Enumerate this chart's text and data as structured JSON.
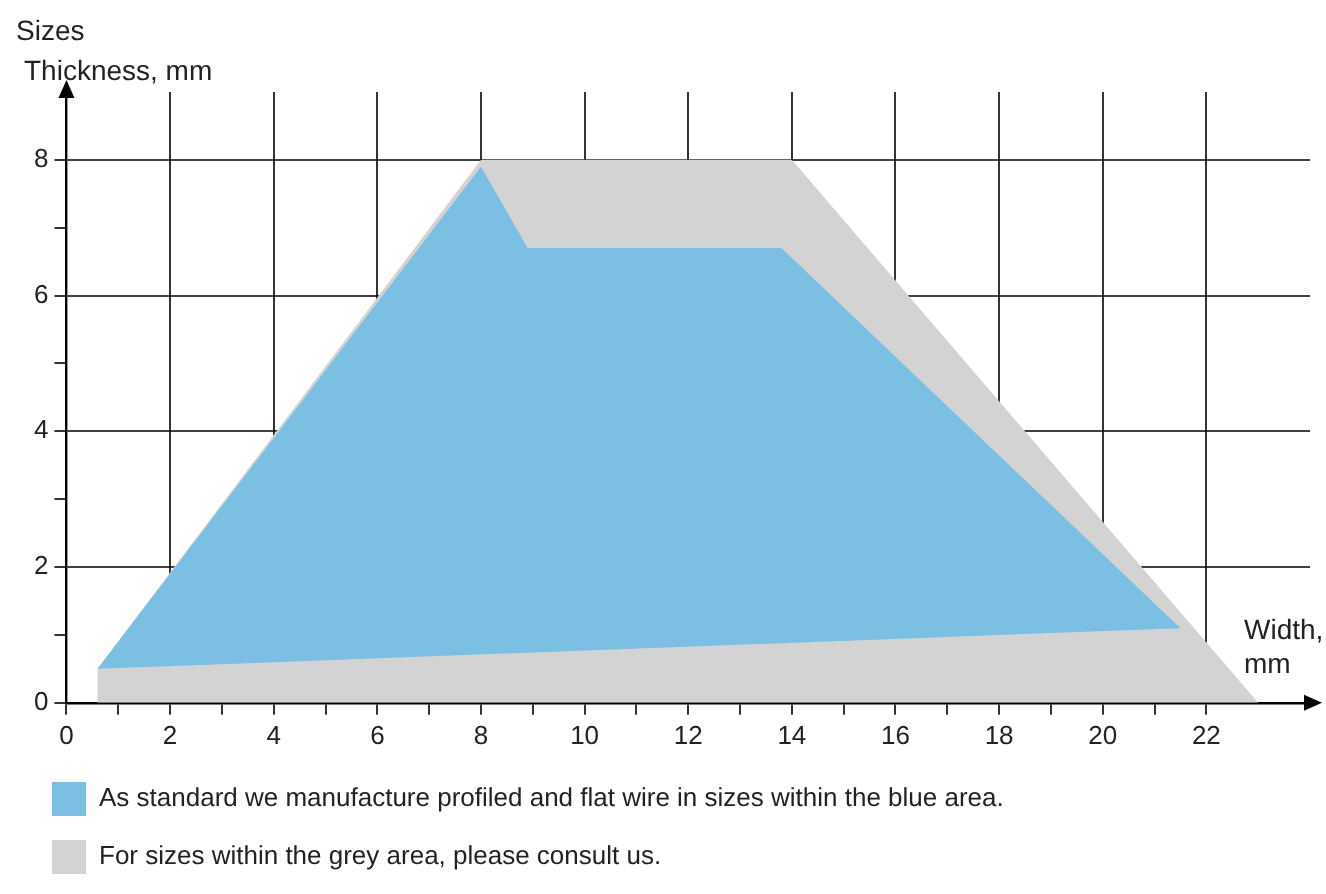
{
  "chart_data": {
    "type": "area",
    "title": "Sizes",
    "ylabel": "Thickness, mm",
    "xlabel": "Width,\nmm",
    "xlim": [
      0,
      24
    ],
    "ylim": [
      0,
      9
    ],
    "xticks": [
      0,
      {
        "value": 1,
        "label": null
      },
      2,
      {
        "value": 3,
        "label": null
      },
      4,
      {
        "value": 5,
        "label": null
      },
      6,
      {
        "value": 7,
        "label": null
      },
      8,
      {
        "value": 9,
        "label": null
      },
      10,
      {
        "value": 11,
        "label": null
      },
      12,
      {
        "value": 13,
        "label": null
      },
      14,
      {
        "value": 15,
        "label": null
      },
      16,
      {
        "value": 17,
        "label": null
      },
      18,
      {
        "value": 19,
        "label": null
      },
      20,
      {
        "value": 21,
        "label": null
      },
      22
    ],
    "yticks": [
      0,
      {
        "value": 1,
        "label": null
      },
      2,
      {
        "value": 3,
        "label": null
      },
      4,
      {
        "value": 5,
        "label": null
      },
      6,
      {
        "value": 7,
        "label": null
      },
      8
    ],
    "grid": true,
    "legend": "bottom",
    "series": [
      {
        "name": "As standard we manufacture profiled and flat wire in sizes within the blue area.",
        "color": "#7bbfe2",
        "x": [
          0.6,
          8,
          8.9,
          13.8,
          21.5,
          0.6
        ],
        "values": [
          0.5,
          7.9,
          6.7,
          6.7,
          1.1,
          0.5
        ]
      },
      {
        "name": "For sizes within the grey area, please consult us.",
        "color": "#d3d3d4",
        "x": [
          0.6,
          0.6,
          8,
          14,
          23,
          0.6
        ],
        "values": [
          0,
          0.5,
          8,
          8,
          0,
          0
        ]
      }
    ]
  }
}
